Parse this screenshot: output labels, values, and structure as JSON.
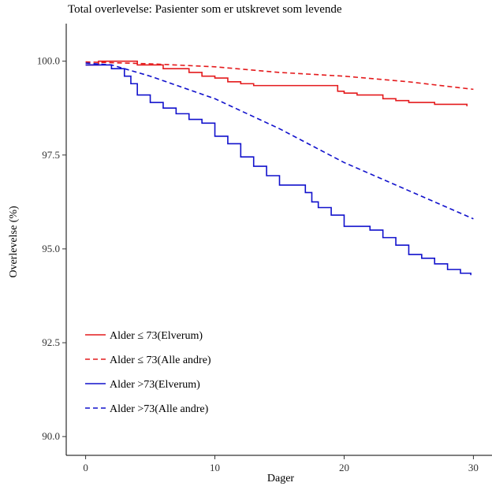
{
  "chart_data": {
    "type": "line",
    "title": "Total overlevelse: Pasienter som er utskrevet som levende",
    "xlabel": "Dager",
    "ylabel": "Overlevelse (%)",
    "xlim": [
      -1.5,
      31.5
    ],
    "ylim": [
      89.5,
      101.0
    ],
    "xticks": [
      0,
      10,
      20,
      30
    ],
    "xtick_labels": [
      "0",
      "10",
      "20",
      "30"
    ],
    "yticks": [
      90.0,
      92.5,
      95.0,
      97.5,
      100.0
    ],
    "ytick_labels": [
      "90.0",
      "92.5",
      "95.0",
      "97.5",
      "100.0"
    ],
    "grid": false,
    "legend_position": "bottom-left",
    "series": [
      {
        "name": "Alder ≤ 73(Elverum)",
        "color": "#e41a1c",
        "dash": "solid",
        "step": true,
        "points": [
          [
            0,
            99.9
          ],
          [
            1,
            100.0
          ],
          [
            2,
            100.0
          ],
          [
            4,
            99.9
          ],
          [
            6,
            99.8
          ],
          [
            8,
            99.7
          ],
          [
            9,
            99.6
          ],
          [
            10,
            99.55
          ],
          [
            11,
            99.45
          ],
          [
            12,
            99.4
          ],
          [
            13,
            99.35
          ],
          [
            15,
            99.35
          ],
          [
            17,
            99.35
          ],
          [
            19,
            99.35
          ],
          [
            19.5,
            99.2
          ],
          [
            20,
            99.15
          ],
          [
            21,
            99.1
          ],
          [
            22,
            99.1
          ],
          [
            23,
            99.0
          ],
          [
            24,
            98.95
          ],
          [
            25,
            98.9
          ],
          [
            26,
            98.9
          ],
          [
            27,
            98.85
          ],
          [
            28,
            98.85
          ],
          [
            29.5,
            98.8
          ]
        ]
      },
      {
        "name": "Alder ≤ 73(Alle andre)",
        "color": "#e41a1c",
        "dash": "dashed",
        "step": false,
        "points": [
          [
            0,
            99.98
          ],
          [
            5,
            99.93
          ],
          [
            10,
            99.85
          ],
          [
            15,
            99.7
          ],
          [
            20,
            99.6
          ],
          [
            25,
            99.45
          ],
          [
            30,
            99.25
          ]
        ]
      },
      {
        "name": "Alder >73(Elverum)",
        "color": "#1111cc",
        "dash": "solid",
        "step": true,
        "points": [
          [
            0,
            99.9
          ],
          [
            1,
            99.9
          ],
          [
            2,
            99.8
          ],
          [
            3,
            99.6
          ],
          [
            3.5,
            99.4
          ],
          [
            4,
            99.1
          ],
          [
            5,
            98.9
          ],
          [
            6,
            98.75
          ],
          [
            7,
            98.6
          ],
          [
            8,
            98.45
          ],
          [
            9,
            98.35
          ],
          [
            10,
            98.0
          ],
          [
            11,
            97.8
          ],
          [
            12,
            97.45
          ],
          [
            13,
            97.2
          ],
          [
            14,
            96.95
          ],
          [
            15,
            96.7
          ],
          [
            17,
            96.5
          ],
          [
            17.5,
            96.25
          ],
          [
            18,
            96.1
          ],
          [
            19,
            95.9
          ],
          [
            20,
            95.6
          ],
          [
            22,
            95.5
          ],
          [
            23,
            95.3
          ],
          [
            24,
            95.1
          ],
          [
            25,
            94.85
          ],
          [
            26,
            94.75
          ],
          [
            27,
            94.6
          ],
          [
            28,
            94.45
          ],
          [
            29,
            94.35
          ],
          [
            29.8,
            94.3
          ]
        ]
      },
      {
        "name": "Alder >73(Alle andre)",
        "color": "#1111cc",
        "dash": "dashed",
        "step": false,
        "points": [
          [
            0,
            99.95
          ],
          [
            2,
            99.9
          ],
          [
            5,
            99.6
          ],
          [
            10,
            99.0
          ],
          [
            15,
            98.2
          ],
          [
            20,
            97.3
          ],
          [
            25,
            96.55
          ],
          [
            30,
            95.8
          ]
        ]
      }
    ]
  }
}
